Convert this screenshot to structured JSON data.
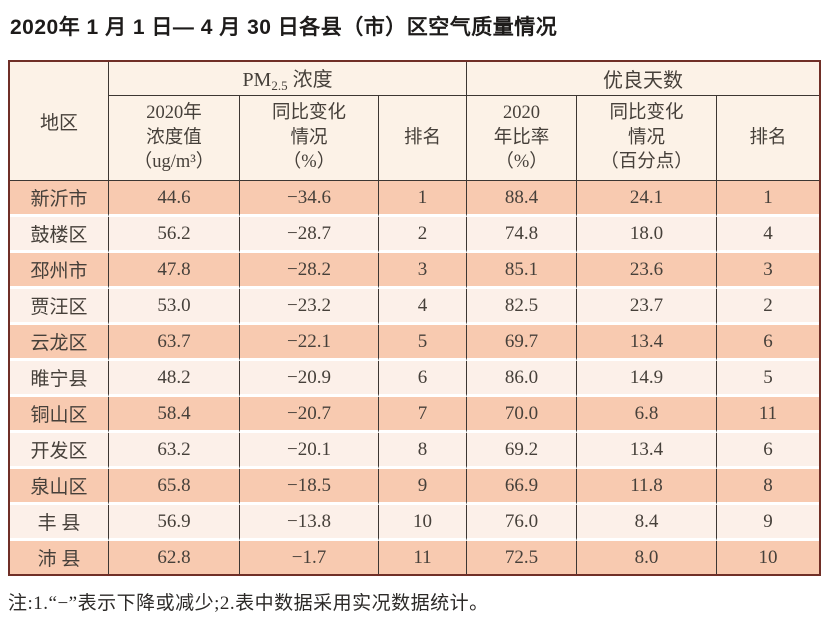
{
  "title": "2020年 1 月 1 日— 4 月 30 日各县（市）区空气质量情况",
  "table": {
    "region_header": "地区",
    "pm_group": {
      "prefix": "PM",
      "subscript": "2.5",
      "suffix": " 浓度"
    },
    "good_group": {
      "label": "优良天数"
    },
    "columns": {
      "pm_value": "2020年\n浓度值\n（ug/m³）",
      "pm_change": "同比变化\n情况\n（%）",
      "pm_rank": "排名",
      "good_rate": "2020\n年比率\n（%）",
      "good_change": "同比变化\n情况\n（百分点）",
      "good_rank": "排名"
    },
    "rows": [
      {
        "region": "新沂市",
        "pm_value": "44.6",
        "pm_change": "−34.6",
        "pm_rank": "1",
        "good_rate": "88.4",
        "good_change": "24.1",
        "good_rank": "1"
      },
      {
        "region": "鼓楼区",
        "pm_value": "56.2",
        "pm_change": "−28.7",
        "pm_rank": "2",
        "good_rate": "74.8",
        "good_change": "18.0",
        "good_rank": "4"
      },
      {
        "region": "邳州市",
        "pm_value": "47.8",
        "pm_change": "−28.2",
        "pm_rank": "3",
        "good_rate": "85.1",
        "good_change": "23.6",
        "good_rank": "3"
      },
      {
        "region": "贾汪区",
        "pm_value": "53.0",
        "pm_change": "−23.2",
        "pm_rank": "4",
        "good_rate": "82.5",
        "good_change": "23.7",
        "good_rank": "2"
      },
      {
        "region": "云龙区",
        "pm_value": "63.7",
        "pm_change": "−22.1",
        "pm_rank": "5",
        "good_rate": "69.7",
        "good_change": "13.4",
        "good_rank": "6"
      },
      {
        "region": "睢宁县",
        "pm_value": "48.2",
        "pm_change": "−20.9",
        "pm_rank": "6",
        "good_rate": "86.0",
        "good_change": "14.9",
        "good_rank": "5"
      },
      {
        "region": "铜山区",
        "pm_value": "58.4",
        "pm_change": "−20.7",
        "pm_rank": "7",
        "good_rate": "70.0",
        "good_change": "6.8",
        "good_rank": "11"
      },
      {
        "region": "开发区",
        "pm_value": "63.2",
        "pm_change": "−20.1",
        "pm_rank": "8",
        "good_rate": "69.2",
        "good_change": "13.4",
        "good_rank": "6"
      },
      {
        "region": "泉山区",
        "pm_value": "65.8",
        "pm_change": "−18.5",
        "pm_rank": "9",
        "good_rate": "66.9",
        "good_change": "11.8",
        "good_rank": "8"
      },
      {
        "region": "丰 县",
        "pm_value": "56.9",
        "pm_change": "−13.8",
        "pm_rank": "10",
        "good_rate": "76.0",
        "good_change": "8.4",
        "good_rank": "9"
      },
      {
        "region": "沛 县",
        "pm_value": "62.8",
        "pm_change": "−1.7",
        "pm_rank": "11",
        "good_rate": "72.5",
        "good_change": "8.0",
        "good_rank": "10"
      }
    ]
  },
  "note": "注:1.“−”表示下降或减少;2.表中数据采用实况数据统计。"
}
